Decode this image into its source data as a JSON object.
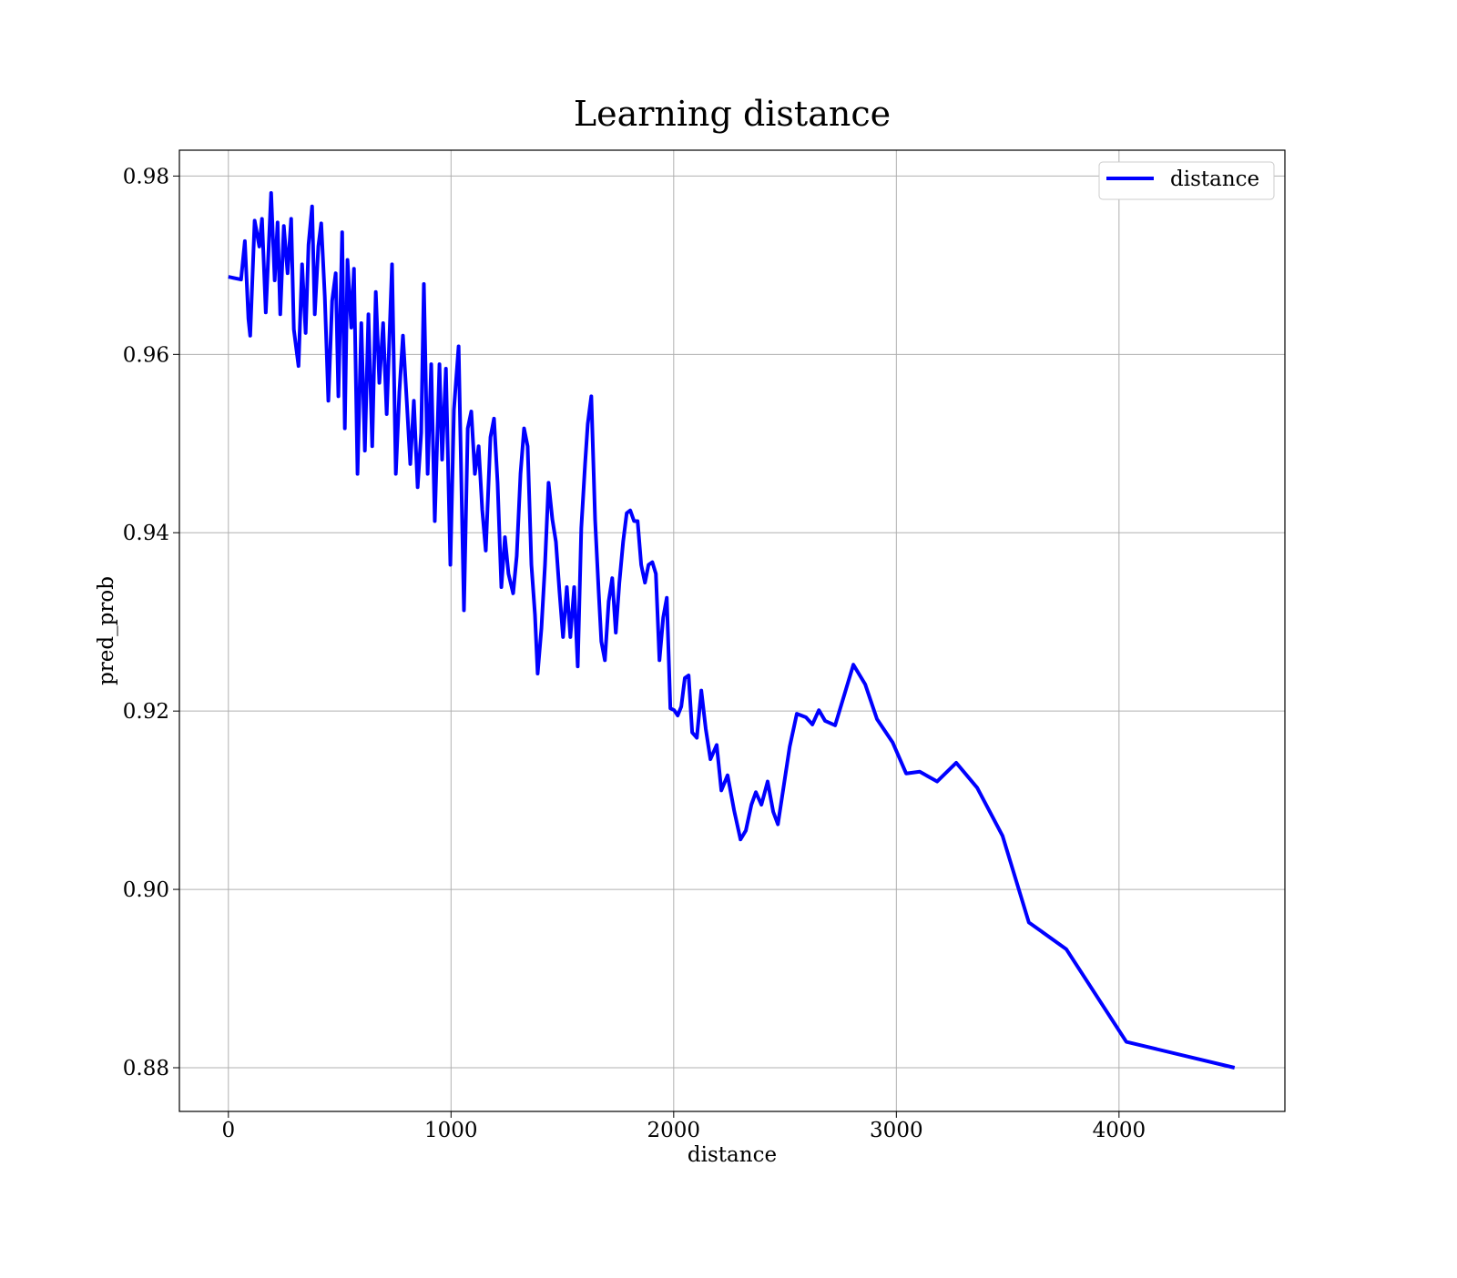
{
  "chart_data": {
    "type": "line",
    "title": "Learning distance",
    "x_label": "distance",
    "y_label": "pred_prob",
    "x": [
      0,
      57,
      74,
      90,
      98,
      118,
      139,
      151,
      168,
      192,
      208,
      221,
      233,
      249,
      266,
      282,
      294,
      315,
      331,
      347,
      360,
      376,
      388,
      404,
      417,
      433,
      449,
      466,
      482,
      494,
      511,
      523,
      535,
      552,
      564,
      580,
      597,
      613,
      629,
      646,
      662,
      678,
      695,
      711,
      735,
      752,
      768,
      784,
      801,
      817,
      833,
      850,
      866,
      878,
      895,
      911,
      927,
      948,
      960,
      977,
      997,
      1013,
      1034,
      1058,
      1075,
      1091,
      1107,
      1124,
      1140,
      1156,
      1177,
      1193,
      1209,
      1226,
      1242,
      1258,
      1279,
      1295,
      1312,
      1328,
      1344,
      1361,
      1377,
      1389,
      1406,
      1422,
      1438,
      1455,
      1471,
      1487,
      1503,
      1520,
      1536,
      1553,
      1569,
      1585,
      1602,
      1614,
      1630,
      1647,
      1663,
      1675,
      1691,
      1708,
      1724,
      1740,
      1756,
      1773,
      1789,
      1805,
      1822,
      1838,
      1854,
      1871,
      1887,
      1904,
      1920,
      1936,
      1953,
      1969,
      1985,
      2002,
      2018,
      2034,
      2050,
      2067,
      2083,
      2104,
      2124,
      2144,
      2165,
      2193,
      2214,
      2242,
      2271,
      2300,
      2324,
      2349,
      2369,
      2394,
      2422,
      2447,
      2468,
      2521,
      2553,
      2594,
      2623,
      2652,
      2680,
      2725,
      2807,
      2860,
      2913,
      2983,
      3044,
      3105,
      3183,
      3269,
      3363,
      3477,
      3595,
      3763,
      4033,
      4519
    ],
    "series": [
      {
        "name": "distance",
        "color": "#0000ff",
        "values": [
          0.9687,
          0.9684,
          0.9727,
          0.964,
          0.9621,
          0.975,
          0.9721,
          0.9752,
          0.9647,
          0.9781,
          0.9683,
          0.9748,
          0.9645,
          0.9744,
          0.9691,
          0.9752,
          0.9628,
          0.9587,
          0.9701,
          0.9624,
          0.9723,
          0.9766,
          0.9645,
          0.9721,
          0.9747,
          0.9665,
          0.9548,
          0.966,
          0.9691,
          0.9553,
          0.9737,
          0.9517,
          0.9706,
          0.963,
          0.9696,
          0.9466,
          0.9635,
          0.9492,
          0.9645,
          0.9497,
          0.967,
          0.9568,
          0.9635,
          0.9533,
          0.9701,
          0.9466,
          0.9558,
          0.9621,
          0.9548,
          0.9477,
          0.9548,
          0.9451,
          0.9512,
          0.9679,
          0.9466,
          0.9589,
          0.9413,
          0.9589,
          0.9482,
          0.9584,
          0.9364,
          0.9538,
          0.9609,
          0.9313,
          0.9517,
          0.9536,
          0.9466,
          0.9497,
          0.9426,
          0.938,
          0.9507,
          0.9528,
          0.9456,
          0.9339,
          0.9395,
          0.9354,
          0.9332,
          0.9374,
          0.9466,
          0.9517,
          0.9497,
          0.9364,
          0.9308,
          0.9242,
          0.9293,
          0.9364,
          0.9456,
          0.9415,
          0.939,
          0.9334,
          0.9283,
          0.9339,
          0.9283,
          0.9339,
          0.925,
          0.9405,
          0.9477,
          0.9522,
          0.9553,
          0.9415,
          0.9334,
          0.9278,
          0.9257,
          0.9323,
          0.9349,
          0.9288,
          0.9344,
          0.939,
          0.9422,
          0.9425,
          0.9413,
          0.9413,
          0.9364,
          0.9344,
          0.9364,
          0.9367,
          0.9354,
          0.9257,
          0.9305,
          0.9327,
          0.9203,
          0.9201,
          0.9195,
          0.9205,
          0.9237,
          0.924,
          0.9176,
          0.917,
          0.9223,
          0.918,
          0.9146,
          0.9162,
          0.9111,
          0.9128,
          0.9089,
          0.9056,
          0.9066,
          0.9095,
          0.9109,
          0.9095,
          0.9121,
          0.9087,
          0.9073,
          0.916,
          0.9197,
          0.9193,
          0.9185,
          0.9201,
          0.9189,
          0.9184,
          0.9252,
          0.923,
          0.9191,
          0.9165,
          0.913,
          0.9132,
          0.9121,
          0.9142,
          0.9114,
          0.906,
          0.8963,
          0.8933,
          0.8829,
          0.88
        ]
      }
    ],
    "xlim": [
      -220,
      4745
    ],
    "ylim": [
      0.8751,
      0.9829
    ],
    "xticks": [
      0,
      1000,
      2000,
      3000,
      4000
    ],
    "yticks": [
      0.88,
      {
        "value": 0.9,
        "label": "0.90"
      },
      0.92,
      0.94,
      0.96,
      0.98
    ],
    "grid": true,
    "legend": "upper right"
  }
}
